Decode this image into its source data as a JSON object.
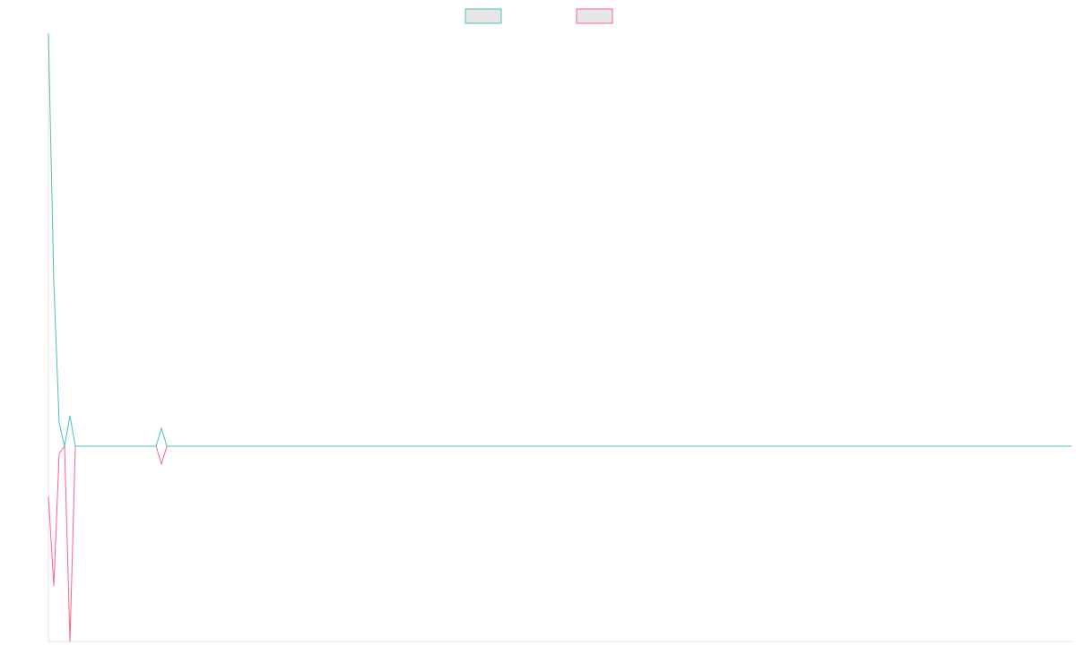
{
  "chart_data": {
    "type": "line",
    "x": [
      0,
      1,
      2,
      3,
      4,
      5,
      20,
      21,
      22,
      190
    ],
    "xlim": [
      0,
      190
    ],
    "ylim": [
      -218,
      461
    ],
    "series": [
      {
        "color": "#4bc0c0",
        "values": [
          461,
          183,
          26,
          0,
          34,
          0,
          0,
          20,
          0,
          0
        ]
      },
      {
        "color": "#ff6384",
        "values": [
          -56,
          -156,
          -8,
          0,
          -218,
          0,
          0,
          -20,
          0,
          0
        ]
      }
    ]
  }
}
